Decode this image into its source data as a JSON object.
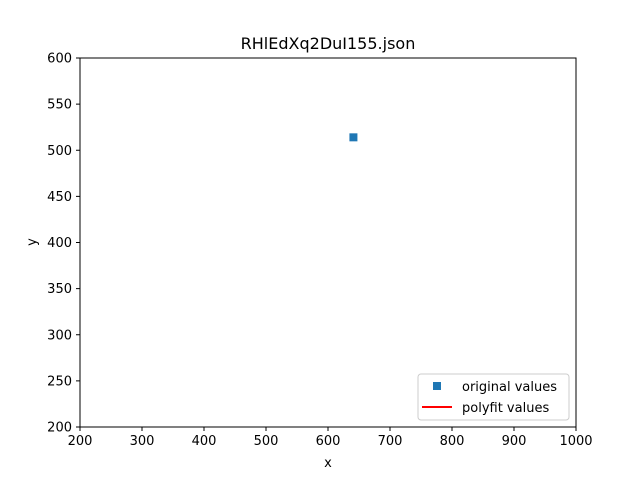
{
  "chart_data": {
    "type": "scatter",
    "title": "RHlEdXq2DuI155.json",
    "xlabel": "x",
    "ylabel": "y",
    "xlim": [
      200,
      1000
    ],
    "ylim": [
      200,
      600
    ],
    "xticks": [
      200,
      300,
      400,
      500,
      600,
      700,
      800,
      900,
      1000
    ],
    "yticks": [
      200,
      250,
      300,
      350,
      400,
      450,
      500,
      550,
      600
    ],
    "grid": false,
    "legend_position": "bottom-right",
    "series": [
      {
        "name": "original values",
        "kind": "marker",
        "marker": "square",
        "color": "#1f77b4",
        "points": [
          {
            "x": 641,
            "y": 514
          }
        ]
      },
      {
        "name": "polyfit values",
        "kind": "line",
        "color": "#ff0000",
        "points": []
      }
    ]
  }
}
